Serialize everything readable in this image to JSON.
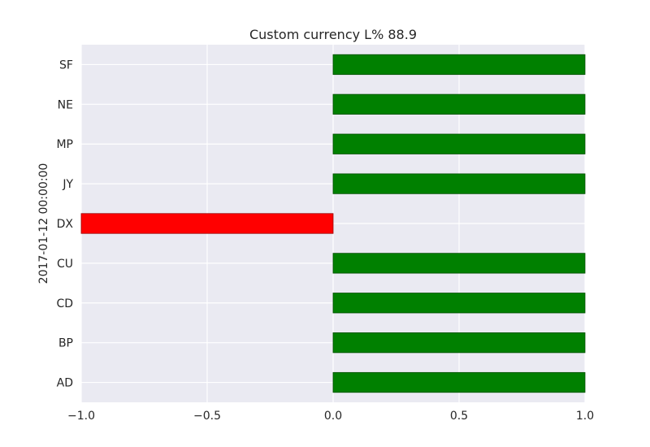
{
  "chart_data": {
    "type": "bar",
    "orientation": "horizontal",
    "title": "Custom currency L% 88.9",
    "xlabel": "",
    "ylabel": "2017-01-12 00:00:00",
    "categories": [
      "AD",
      "BP",
      "CD",
      "CU",
      "DX",
      "JY",
      "MP",
      "NE",
      "SF"
    ],
    "values": [
      1,
      1,
      1,
      1,
      -1,
      1,
      1,
      1,
      1
    ],
    "xlim": [
      -1.0,
      1.0
    ],
    "xticks": [
      -1.0,
      -0.5,
      0.0,
      0.5,
      1.0
    ],
    "xtick_labels": [
      "−1.0",
      "−0.5",
      "0.0",
      "0.5",
      "1.0"
    ],
    "grid": true,
    "colors": {
      "positive": "#008000",
      "negative": "#ff0000",
      "background": "#eaeaf2",
      "grid": "#ffffff"
    }
  }
}
